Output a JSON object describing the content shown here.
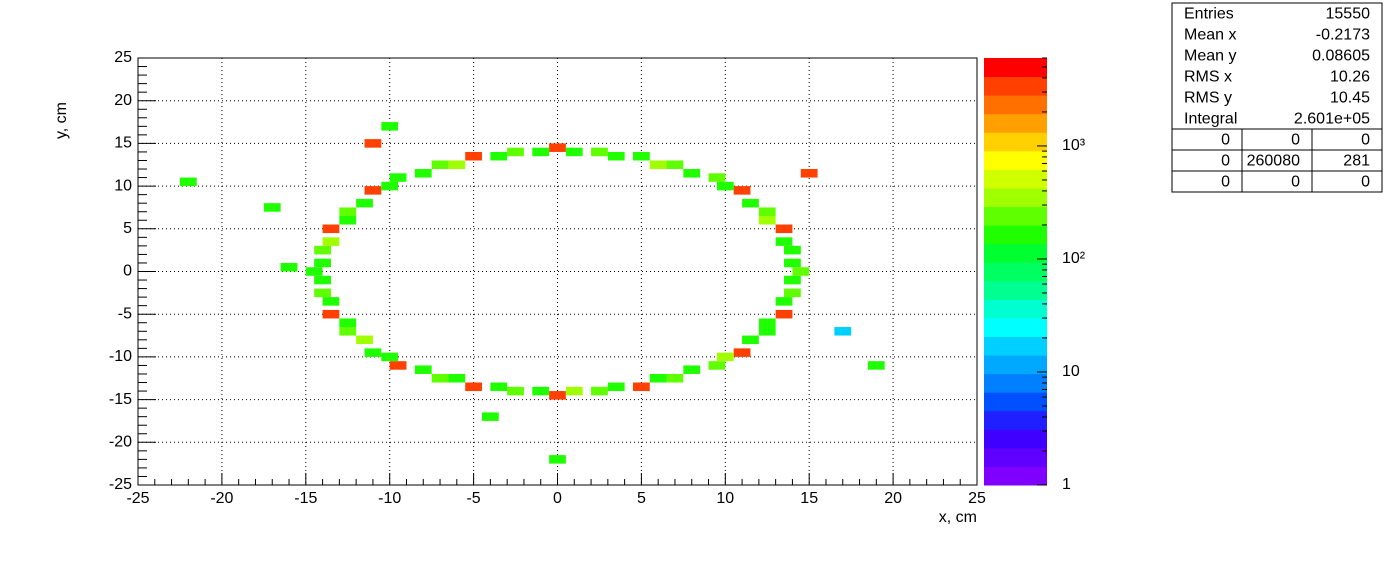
{
  "chart_data": {
    "type": "heatmap",
    "xlabel": "x, cm",
    "ylabel": "y, cm",
    "xlim": [
      -25,
      25
    ],
    "ylim": [
      -25,
      25
    ],
    "xticks": [
      -25,
      -20,
      -15,
      -10,
      -5,
      0,
      5,
      10,
      15,
      20,
      25
    ],
    "yticks": [
      -25,
      -20,
      -15,
      -10,
      -5,
      0,
      5,
      10,
      15,
      20,
      25
    ],
    "grid": true,
    "zscale": "log",
    "zlim": [
      1,
      6000
    ],
    "zticks": [
      1,
      10,
      {
        "value": 100,
        "label": "10²"
      },
      {
        "value": 1000,
        "label": "10³"
      }
    ],
    "palette": [
      "#7f00ff",
      "#5f00ff",
      "#3f00ff",
      "#1f1fff",
      "#0050ff",
      "#0080ff",
      "#00a8ff",
      "#00d0ff",
      "#00ffff",
      "#00ffd0",
      "#00ff90",
      "#00ff60",
      "#00ff30",
      "#20ff00",
      "#60ff00",
      "#a0ff00",
      "#d0ff00",
      "#ffff00",
      "#ffd000",
      "#ffa000",
      "#ff7000",
      "#ff4000",
      "#ff0000"
    ],
    "x": [
      14.5,
      14,
      13.5,
      12.5,
      11,
      9.5,
      7,
      5,
      2.5,
      0,
      -2.5,
      -5,
      -7,
      -9.5,
      -11,
      -12.5,
      -13.5,
      -14,
      -14.5,
      -14,
      -13.5,
      -12.5,
      -11,
      -9.5,
      -7,
      -5,
      -2.5,
      0,
      2.5,
      5,
      7,
      9.5,
      11,
      12.5,
      13.5,
      14,
      14,
      13.5,
      12.5,
      11.5,
      10,
      8,
      6,
      3.5,
      1,
      -1,
      -3.5,
      -6,
      -8,
      -10,
      -11.5,
      -12.5,
      -13.5,
      -14,
      -14,
      -13.5,
      -12.5,
      -11.5,
      -10,
      -8,
      -6,
      -3.5,
      -1,
      1,
      3.5,
      6,
      8,
      10,
      11.5,
      12.5,
      13.5,
      14,
      -22,
      -17,
      -16,
      17,
      19,
      0,
      -11,
      15,
      -10,
      -4
    ],
    "y": [
      0,
      2.5,
      5,
      7,
      9.5,
      11,
      12.5,
      13.5,
      14,
      14.5,
      14,
      13.5,
      12.5,
      11,
      9.5,
      7,
      5,
      2.5,
      0,
      -2.5,
      -5,
      -7,
      -9.5,
      -11,
      -12.5,
      -13.5,
      -14,
      -14.5,
      -14,
      -13.5,
      -12.5,
      -11,
      -9.5,
      -7,
      -5,
      -2.5,
      1,
      3.5,
      6,
      8,
      10,
      11.5,
      12.5,
      13.5,
      14,
      14,
      13.5,
      12.5,
      11.5,
      10,
      8,
      6,
      3.5,
      1,
      -1,
      -3.5,
      -6,
      -8,
      -10,
      -11.5,
      -12.5,
      -13.5,
      -14,
      -14,
      -13.5,
      -12.5,
      -11.5,
      -10,
      -8,
      -6,
      -3.5,
      -1,
      10.5,
      7.5,
      0.5,
      -7,
      -11,
      -22,
      15,
      11.5,
      17,
      -17
    ],
    "values": [
      200,
      180,
      4000,
      220,
      3000,
      200,
      250,
      180,
      200,
      3500,
      200,
      3000,
      220,
      180,
      4000,
      200,
      3000,
      200,
      180,
      250,
      3000,
      200,
      180,
      4000,
      220,
      3000,
      200,
      3500,
      200,
      4000,
      200,
      220,
      3000,
      180,
      4000,
      200,
      150,
      150,
      300,
      150,
      150,
      150,
      300,
      150,
      150,
      150,
      150,
      300,
      150,
      150,
      150,
      150,
      300,
      150,
      150,
      150,
      150,
      300,
      150,
      150,
      150,
      150,
      150,
      300,
      150,
      150,
      150,
      300,
      150,
      150,
      150,
      150,
      150,
      150,
      150,
      20,
      150,
      150,
      3000,
      3000,
      150,
      150
    ],
    "stats": {
      "rows": [
        {
          "label": "Entries",
          "value": 15550
        },
        {
          "label": "Mean x",
          "value": -0.2173
        },
        {
          "label": "Mean y",
          "value": 0.08605
        },
        {
          "label": "RMS x",
          "value": 10.26
        },
        {
          "label": "RMS y",
          "value": 10.45
        },
        {
          "label": "Integral",
          "value": "2.601e+05"
        }
      ],
      "grid": [
        [
          0,
          0,
          0
        ],
        [
          0,
          260080,
          281
        ],
        [
          0,
          0,
          0
        ]
      ]
    }
  }
}
